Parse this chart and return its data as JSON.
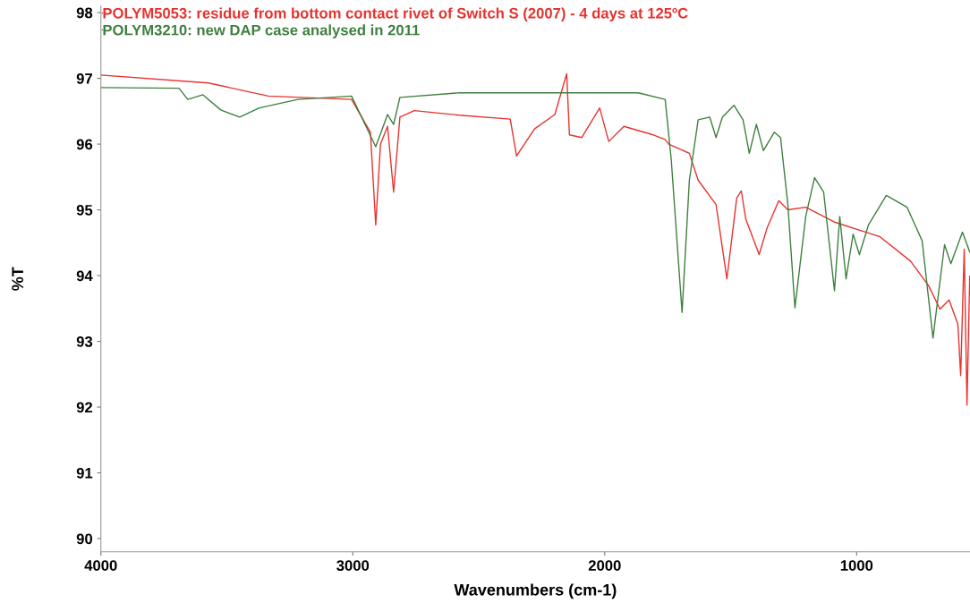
{
  "chart_data": {
    "type": "line",
    "xlabel": "Wavenumbers (cm-1)",
    "ylabel": "%T",
    "xlim": [
      4000,
      550
    ],
    "ylim": [
      89.8,
      98.1
    ],
    "xticks": [
      4000,
      3000,
      2000,
      1000
    ],
    "yticks": [
      90,
      91,
      92,
      93,
      94,
      95,
      96,
      97,
      98
    ],
    "grid": false,
    "legend": "top left",
    "marker": "none",
    "line_style": "solid",
    "series": [
      {
        "name": "POLYM5053: residue from bottom contact rivet of Switch S (2007) - 4 days at 125ºC",
        "color": "#e8322e",
        "x": [
          4000,
          3573,
          3335,
          3005,
          2930,
          2909,
          2890,
          2862,
          2838,
          2813,
          2756,
          2578,
          2375,
          2350,
          2279,
          2198,
          2151,
          2140,
          2091,
          2020,
          1984,
          1924,
          1807,
          1760,
          1746,
          1664,
          1629,
          1558,
          1515,
          1476,
          1458,
          1440,
          1387,
          1355,
          1309,
          1273,
          1202,
          1085,
          907,
          786,
          715,
          669,
          633,
          598,
          587,
          573,
          562,
          551
        ],
        "values": [
          97.05,
          96.93,
          96.73,
          96.68,
          96.18,
          94.77,
          96.0,
          96.27,
          95.27,
          96.41,
          96.51,
          96.44,
          96.38,
          95.82,
          96.23,
          96.45,
          97.07,
          96.14,
          96.1,
          96.55,
          96.04,
          96.27,
          96.14,
          96.07,
          96.0,
          95.86,
          95.45,
          95.08,
          93.95,
          95.18,
          95.29,
          94.86,
          94.32,
          94.73,
          95.14,
          95.0,
          95.04,
          94.81,
          94.59,
          94.22,
          93.85,
          93.49,
          93.63,
          93.26,
          92.48,
          94.4,
          92.03,
          93.99
        ]
      },
      {
        "name": "POLYM3210: new DAP case analysed in 2011",
        "color": "#3f7f3f",
        "x": [
          4000,
          3690,
          3655,
          3595,
          3524,
          3449,
          3371,
          3218,
          3005,
          2909,
          2862,
          2838,
          2813,
          2578,
          1867,
          1760,
          1736,
          1693,
          1664,
          1629,
          1583,
          1558,
          1533,
          1487,
          1451,
          1426,
          1398,
          1370,
          1327,
          1302,
          1273,
          1245,
          1202,
          1167,
          1131,
          1088,
          1067,
          1042,
          1014,
          989,
          953,
          882,
          800,
          740,
          697,
          651,
          626,
          580,
          551
        ],
        "values": [
          96.86,
          96.85,
          96.68,
          96.75,
          96.52,
          96.41,
          96.55,
          96.68,
          96.73,
          95.96,
          96.45,
          96.3,
          96.71,
          96.78,
          96.78,
          96.68,
          95.77,
          93.44,
          95.45,
          96.37,
          96.41,
          96.1,
          96.41,
          96.59,
          96.37,
          95.86,
          96.3,
          95.9,
          96.18,
          96.1,
          95.08,
          93.51,
          94.9,
          95.49,
          95.27,
          93.77,
          94.9,
          93.95,
          94.63,
          94.32,
          94.77,
          95.22,
          95.04,
          94.53,
          93.05,
          94.47,
          94.18,
          94.66,
          94.36
        ]
      }
    ]
  }
}
